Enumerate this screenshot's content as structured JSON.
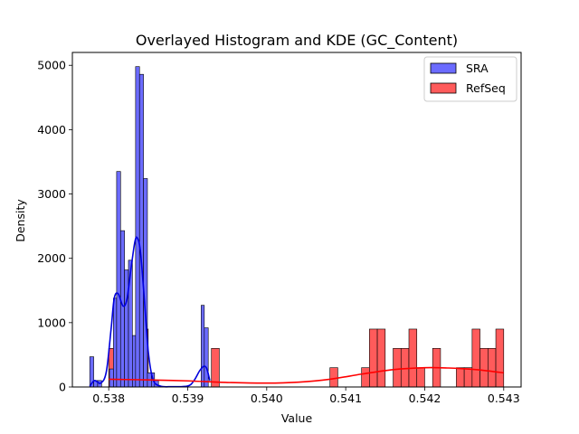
{
  "chart_data": {
    "type": "histogram+kde",
    "title": "Overlayed Histogram and KDE (GC_Content)",
    "xlabel": "Value",
    "ylabel": "Density",
    "xlim": [
      0.53754,
      0.54322
    ],
    "ylim": [
      0,
      5200
    ],
    "xticks": [
      {
        "value": 0.538,
        "label": "0.538"
      },
      {
        "value": 0.539,
        "label": "0.539"
      },
      {
        "value": 0.54,
        "label": "0.540"
      },
      {
        "value": 0.541,
        "label": "0.541"
      },
      {
        "value": 0.542,
        "label": "0.542"
      },
      {
        "value": 0.543,
        "label": "0.543"
      }
    ],
    "yticks": [
      {
        "value": 0,
        "label": "0"
      },
      {
        "value": 1000,
        "label": "1000"
      },
      {
        "value": 2000,
        "label": "2000"
      },
      {
        "value": 3000,
        "label": "3000"
      },
      {
        "value": 4000,
        "label": "4000"
      },
      {
        "value": 5000,
        "label": "5000"
      }
    ],
    "grid": false,
    "legend_position": "top-right",
    "series": [
      {
        "name": "SRA",
        "fill_color": "#6b6bff",
        "edge_color": "#000000",
        "line_color": "#0000dd",
        "bins": [
          {
            "x0": 0.53776,
            "x1": 0.53781,
            "value": 470
          },
          {
            "x0": 0.53781,
            "x1": 0.53786,
            "value": 100
          },
          {
            "x0": 0.53786,
            "x1": 0.53791,
            "value": 100
          },
          {
            "x0": 0.53801,
            "x1": 0.53806,
            "value": 280
          },
          {
            "x0": 0.53806,
            "x1": 0.5381,
            "value": 1380
          },
          {
            "x0": 0.5381,
            "x1": 0.53815,
            "value": 3350
          },
          {
            "x0": 0.53815,
            "x1": 0.5382,
            "value": 2430
          },
          {
            "x0": 0.5382,
            "x1": 0.53825,
            "value": 1820
          },
          {
            "x0": 0.53825,
            "x1": 0.5383,
            "value": 1970
          },
          {
            "x0": 0.5383,
            "x1": 0.53834,
            "value": 800
          },
          {
            "x0": 0.53834,
            "x1": 0.53839,
            "value": 4980
          },
          {
            "x0": 0.53839,
            "x1": 0.53844,
            "value": 4860
          },
          {
            "x0": 0.53844,
            "x1": 0.53849,
            "value": 3240
          },
          {
            "x0": 0.53849,
            "x1": 0.53854,
            "value": 220
          },
          {
            "x0": 0.53854,
            "x1": 0.53858,
            "value": 220
          },
          {
            "x0": 0.53858,
            "x1": 0.53863,
            "value": 100
          },
          {
            "x0": 0.53917,
            "x1": 0.53921,
            "value": 1270
          },
          {
            "x0": 0.53921,
            "x1": 0.53926,
            "value": 920
          }
        ],
        "kde": [
          {
            "x": 0.53776,
            "y": 10
          },
          {
            "x": 0.53782,
            "y": 100
          },
          {
            "x": 0.5379,
            "y": 60
          },
          {
            "x": 0.53797,
            "y": 240
          },
          {
            "x": 0.53803,
            "y": 900
          },
          {
            "x": 0.53807,
            "y": 1380
          },
          {
            "x": 0.53812,
            "y": 1450
          },
          {
            "x": 0.53818,
            "y": 1260
          },
          {
            "x": 0.53823,
            "y": 1360
          },
          {
            "x": 0.53828,
            "y": 1820
          },
          {
            "x": 0.53833,
            "y": 2250
          },
          {
            "x": 0.53836,
            "y": 2320
          },
          {
            "x": 0.5384,
            "y": 2120
          },
          {
            "x": 0.53845,
            "y": 1380
          },
          {
            "x": 0.5385,
            "y": 560
          },
          {
            "x": 0.53856,
            "y": 120
          },
          {
            "x": 0.53865,
            "y": 15
          },
          {
            "x": 0.5388,
            "y": 5
          },
          {
            "x": 0.539,
            "y": 15
          },
          {
            "x": 0.53908,
            "y": 100
          },
          {
            "x": 0.53915,
            "y": 250
          },
          {
            "x": 0.5392,
            "y": 320
          },
          {
            "x": 0.53924,
            "y": 290
          },
          {
            "x": 0.53928,
            "y": 100
          }
        ]
      },
      {
        "name": "RefSeq",
        "fill_color": "#ff5b5b",
        "edge_color": "#000000",
        "line_color": "#ff0000",
        "bins": [
          {
            "x0": 0.538,
            "x1": 0.5381,
            "value": 600
          },
          {
            "x0": 0.5383,
            "x1": 0.5384,
            "value": 300
          },
          {
            "x0": 0.5384,
            "x1": 0.5385,
            "value": 900
          },
          {
            "x0": 0.5393,
            "x1": 0.5394,
            "value": 600
          },
          {
            "x0": 0.5408,
            "x1": 0.5409,
            "value": 300
          },
          {
            "x0": 0.5412,
            "x1": 0.5413,
            "value": 300
          },
          {
            "x0": 0.5413,
            "x1": 0.5414,
            "value": 900
          },
          {
            "x0": 0.5414,
            "x1": 0.5415,
            "value": 900
          },
          {
            "x0": 0.5416,
            "x1": 0.5417,
            "value": 600
          },
          {
            "x0": 0.5417,
            "x1": 0.5418,
            "value": 600
          },
          {
            "x0": 0.5418,
            "x1": 0.5419,
            "value": 900
          },
          {
            "x0": 0.5419,
            "x1": 0.542,
            "value": 300
          },
          {
            "x0": 0.5421,
            "x1": 0.5422,
            "value": 600
          },
          {
            "x0": 0.5424,
            "x1": 0.5425,
            "value": 300
          },
          {
            "x0": 0.5425,
            "x1": 0.5426,
            "value": 300
          },
          {
            "x0": 0.5426,
            "x1": 0.5427,
            "value": 900
          },
          {
            "x0": 0.5427,
            "x1": 0.5428,
            "value": 600
          },
          {
            "x0": 0.5428,
            "x1": 0.5429,
            "value": 600
          },
          {
            "x0": 0.5429,
            "x1": 0.543,
            "value": 900
          }
        ],
        "kde": [
          {
            "x": 0.538,
            "y": 120
          },
          {
            "x": 0.5385,
            "y": 110
          },
          {
            "x": 0.539,
            "y": 95
          },
          {
            "x": 0.5395,
            "y": 70
          },
          {
            "x": 0.54,
            "y": 60
          },
          {
            "x": 0.5404,
            "y": 75
          },
          {
            "x": 0.5408,
            "y": 120
          },
          {
            "x": 0.5412,
            "y": 200
          },
          {
            "x": 0.5416,
            "y": 270
          },
          {
            "x": 0.542,
            "y": 300
          },
          {
            "x": 0.5423,
            "y": 295
          },
          {
            "x": 0.5426,
            "y": 275
          },
          {
            "x": 0.5428,
            "y": 250
          },
          {
            "x": 0.543,
            "y": 220
          }
        ]
      }
    ]
  }
}
